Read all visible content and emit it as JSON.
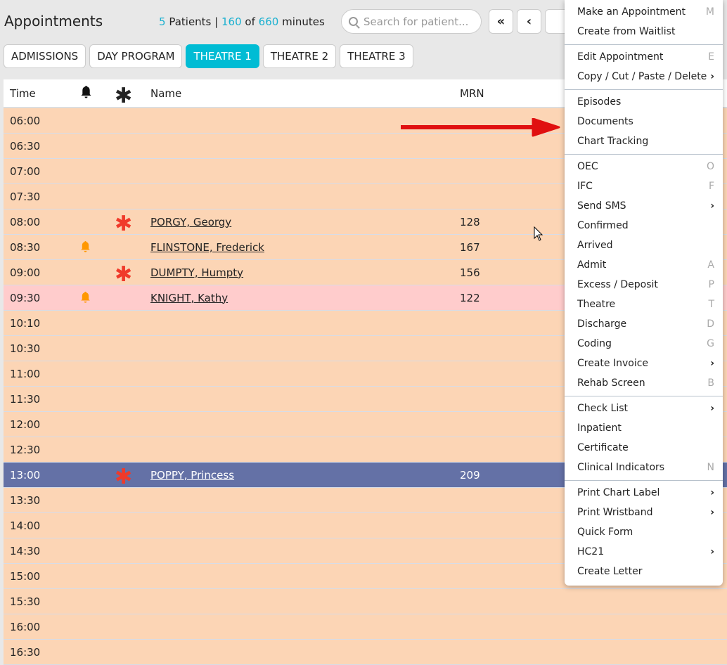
{
  "header": {
    "title": "Appointments",
    "patients_count": "5",
    "patients_label": "Patients |",
    "minutes_used": "160",
    "of_label": "of",
    "minutes_total": "660",
    "minutes_label": "minutes",
    "search_placeholder": "Search for patient...",
    "first_label": "«",
    "prev_label": "‹"
  },
  "tabs": [
    {
      "label": "ADMISSIONS"
    },
    {
      "label": "DAY PROGRAM"
    },
    {
      "label": "THEATRE 1",
      "active": true
    },
    {
      "label": "THEATRE 2"
    },
    {
      "label": "THEATRE 3"
    }
  ],
  "table": {
    "columns": {
      "time": "Time",
      "name": "Name",
      "mrn": "MRN"
    },
    "rows": [
      {
        "time": "06:00"
      },
      {
        "time": "06:30"
      },
      {
        "time": "07:00"
      },
      {
        "time": "07:30"
      },
      {
        "time": "08:00",
        "star": true,
        "name": "PORGY, Georgy",
        "mrn": "128"
      },
      {
        "time": "08:30",
        "bell": true,
        "name": "FLINSTONE, Frederick",
        "mrn": "167"
      },
      {
        "time": "09:00",
        "star": true,
        "name": "DUMPTY, Humpty",
        "mrn": "156"
      },
      {
        "time": "09:30",
        "bell": true,
        "name": "KNIGHT, Kathy",
        "mrn": "122",
        "status": "pink"
      },
      {
        "time": "10:10"
      },
      {
        "time": "10:30"
      },
      {
        "time": "11:00"
      },
      {
        "time": "11:30"
      },
      {
        "time": "12:00"
      },
      {
        "time": "12:30"
      },
      {
        "time": "13:00",
        "star": true,
        "name": "POPPY, Princess",
        "mrn": "209",
        "status": "selected"
      },
      {
        "time": "13:30"
      },
      {
        "time": "14:00"
      },
      {
        "time": "14:30"
      },
      {
        "time": "15:00"
      },
      {
        "time": "15:30"
      },
      {
        "time": "16:00"
      },
      {
        "time": "16:30"
      }
    ]
  },
  "context_menu": [
    [
      {
        "label": "Make an Appointment",
        "key": "M"
      },
      {
        "label": "Create from Waitlist"
      }
    ],
    [
      {
        "label": "Edit Appointment",
        "key": "E"
      },
      {
        "label": "Copy / Cut / Paste / Delete",
        "submenu": true
      }
    ],
    [
      {
        "label": "Episodes"
      },
      {
        "label": "Documents"
      },
      {
        "label": "Chart Tracking"
      }
    ],
    [
      {
        "label": "OEC",
        "key": "O"
      },
      {
        "label": "IFC",
        "key": "F"
      },
      {
        "label": "Send SMS",
        "submenu": true
      },
      {
        "label": "Confirmed"
      },
      {
        "label": "Arrived"
      },
      {
        "label": "Admit",
        "key": "A"
      },
      {
        "label": "Excess / Deposit",
        "key": "P"
      },
      {
        "label": "Theatre",
        "key": "T"
      },
      {
        "label": "Discharge",
        "key": "D"
      },
      {
        "label": "Coding",
        "key": "G"
      },
      {
        "label": "Create Invoice",
        "submenu": true
      },
      {
        "label": "Rehab Screen",
        "key": "B"
      }
    ],
    [
      {
        "label": "Check List",
        "submenu": true
      },
      {
        "label": "Inpatient"
      },
      {
        "label": "Certificate"
      },
      {
        "label": "Clinical Indicators",
        "key": "N"
      }
    ],
    [
      {
        "label": "Print Chart Label",
        "submenu": true
      },
      {
        "label": "Print Wristband",
        "submenu": true
      },
      {
        "label": "Quick Form"
      },
      {
        "label": "HC21",
        "submenu": true
      },
      {
        "label": "Create Letter"
      }
    ]
  ],
  "colors": {
    "accent": "#00bcd4",
    "row_default": "#fcd5b5",
    "row_pink": "#ffcccc",
    "row_selected": "#6471a6",
    "star": "#f03a2a",
    "bell": "#ff9800",
    "annotation_arrow": "#e01010"
  }
}
